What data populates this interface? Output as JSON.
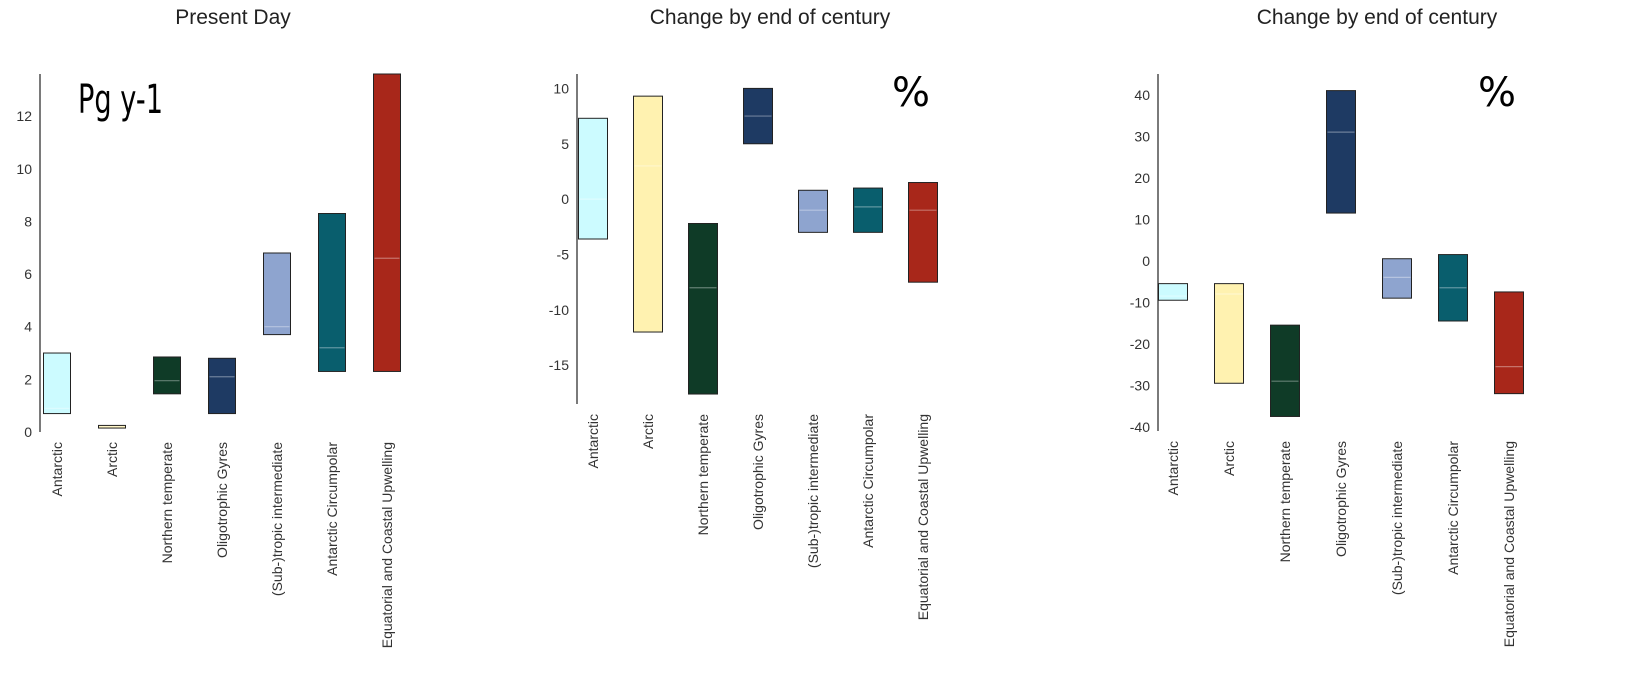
{
  "chart_data": [
    {
      "type": "box",
      "title": "Present Day",
      "unit_label": "Pg y-1",
      "ylim": [
        0,
        13.6
      ],
      "yticks": [
        0,
        2,
        4,
        6,
        8,
        10,
        12
      ],
      "grid": false,
      "categories": [
        "Antarctic",
        "Arctic",
        "Northern temperate",
        "Oligotrophic Gyres",
        "(Sub-)tropic intermediate",
        "Antarctic Circumpolar",
        "Equatorial and Coastal Upwelling"
      ],
      "colors": [
        "#ccfbff",
        "#fff2b0",
        "#0f3b27",
        "#1e3a63",
        "#8ea4cf",
        "#095e6d",
        "#a8271a"
      ],
      "ranges": [
        {
          "low": 0.7,
          "median": 0.9,
          "high": 3.0
        },
        {
          "low": 0.15,
          "median": 0.2,
          "high": 0.25
        },
        {
          "low": 1.45,
          "median": 1.95,
          "high": 2.85
        },
        {
          "low": 0.7,
          "median": 2.1,
          "high": 2.8
        },
        {
          "low": 3.7,
          "median": 4.0,
          "high": 6.8
        },
        {
          "low": 2.3,
          "median": 3.2,
          "high": 8.3
        },
        {
          "low": 2.3,
          "median": 6.6,
          "high": 13.6
        }
      ]
    },
    {
      "type": "box",
      "title": "Change by end of century",
      "unit_label": "%",
      "ylim": [
        -18.5,
        11.3
      ],
      "yticks": [
        -15,
        -10,
        -5,
        0,
        5,
        10
      ],
      "grid": false,
      "categories": [
        "Antarctic",
        "Arctic",
        "Northern temperate",
        "Oligotrophic Gyres",
        "(Sub-)tropic intermediate",
        "Antarctic Circumpolar",
        "Equatorial and Coastal Upwelling"
      ],
      "colors": [
        "#ccfbff",
        "#fff2b0",
        "#0f3b27",
        "#1e3a63",
        "#8ea4cf",
        "#095e6d",
        "#a8271a"
      ],
      "ranges": [
        {
          "low": -3.6,
          "median": 0.0,
          "high": 7.3
        },
        {
          "low": -12.0,
          "median": 3.0,
          "high": 9.3
        },
        {
          "low": -17.6,
          "median": -8.0,
          "high": -2.2
        },
        {
          "low": 5.0,
          "median": 7.5,
          "high": 10.0
        },
        {
          "low": -3.0,
          "median": -1.0,
          "high": 0.8
        },
        {
          "low": -3.0,
          "median": -0.7,
          "high": 1.0
        },
        {
          "low": -7.5,
          "median": -1.0,
          "high": 1.5
        }
      ]
    },
    {
      "type": "box",
      "title": "Change by end of century",
      "unit_label": "%",
      "ylim": [
        -41,
        45
      ],
      "yticks": [
        -40,
        -30,
        -20,
        -10,
        0,
        10,
        20,
        30,
        40
      ],
      "grid": false,
      "categories": [
        "Antarctic",
        "Arctic",
        "Northern temperate",
        "Oligotrophic Gyres",
        "(Sub-)tropic intermediate",
        "Antarctic Circumpolar",
        "Equatorial and Coastal Upwelling"
      ],
      "colors": [
        "#ccfbff",
        "#fff2b0",
        "#0f3b27",
        "#1e3a63",
        "#8ea4cf",
        "#095e6d",
        "#a8271a"
      ],
      "ranges": [
        {
          "low": -9.5,
          "median": -8.5,
          "high": -5.5
        },
        {
          "low": -29.5,
          "median": -8.0,
          "high": -5.5
        },
        {
          "low": -37.5,
          "median": -29.0,
          "high": -15.5
        },
        {
          "low": 11.5,
          "median": 31.0,
          "high": 41.0
        },
        {
          "low": -9.0,
          "median": -4.0,
          "high": 0.5
        },
        {
          "low": -14.5,
          "median": -6.5,
          "high": 1.5
        },
        {
          "low": -32.0,
          "median": -25.5,
          "high": -7.5
        }
      ]
    }
  ]
}
